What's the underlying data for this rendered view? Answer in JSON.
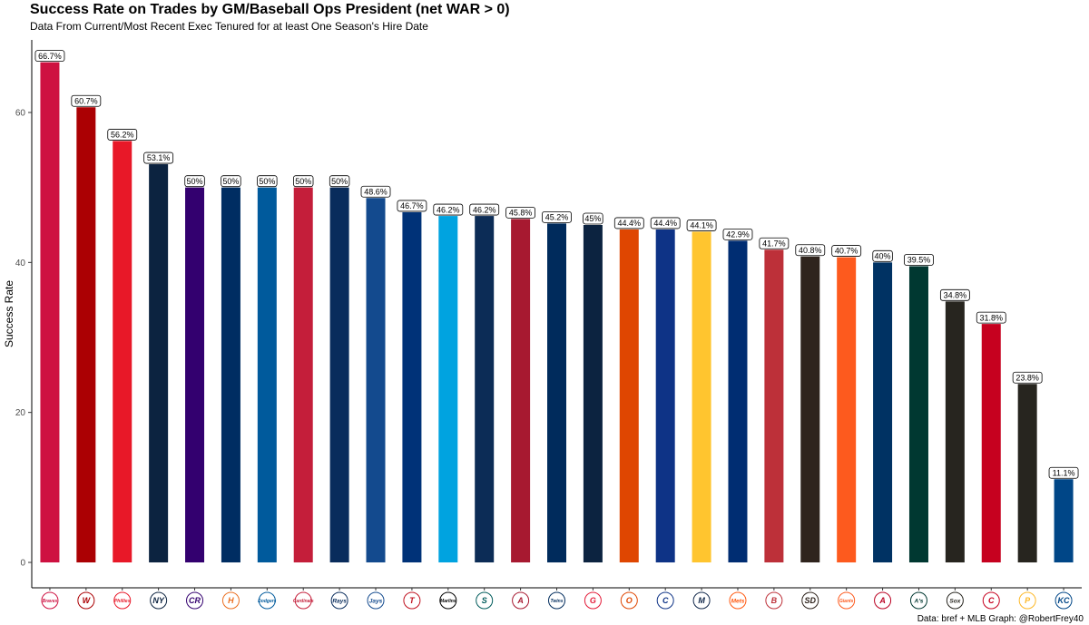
{
  "chart_data": {
    "type": "bar",
    "title": "Success Rate on Trades by GM/Baseball Ops President (net WAR > 0)",
    "subtitle": "Data From Current/Most Recent Exec Tenured for at least One Season's Hire Date",
    "ylabel": "Success Rate",
    "xlabel": "",
    "caption": "Data: bref + MLB Graph: @RobertFrey40",
    "ylim": [
      0,
      70
    ],
    "yticks": [
      0,
      20,
      40,
      60
    ],
    "grid": false,
    "categories": [
      "Braves",
      "Nationals",
      "Phillies",
      "Yankees",
      "Rockies",
      "Astros",
      "Dodgers",
      "Cardinals",
      "Rays",
      "Blue Jays",
      "Rangers",
      "Marlins",
      "Mariners",
      "Diamondbacks",
      "Twins",
      "Guardians",
      "Orioles",
      "Cubs",
      "Brewers",
      "Mets",
      "Red Sox",
      "Padres",
      "Giants",
      "Angels",
      "Athletics",
      "White Sox",
      "Reds",
      "Pirates",
      "Royals"
    ],
    "values": [
      66.7,
      60.7,
      56.2,
      53.1,
      50,
      50,
      50,
      50,
      50,
      48.6,
      46.7,
      46.2,
      46.2,
      45.8,
      45.2,
      45,
      44.4,
      44.4,
      44.1,
      42.9,
      41.7,
      40.8,
      40.7,
      40,
      39.5,
      34.8,
      31.8,
      23.8,
      11.1
    ],
    "value_labels": [
      "66.7%",
      "60.7%",
      "56.2%",
      "53.1%",
      "50%",
      "50%",
      "50%",
      "50%",
      "50%",
      "48.6%",
      "46.7%",
      "46.2%",
      "46.2%",
      "45.8%",
      "45.2%",
      "45%",
      "44.4%",
      "44.4%",
      "44.1%",
      "42.9%",
      "41.7%",
      "40.8%",
      "40.7%",
      "40%",
      "39.5%",
      "34.8%",
      "31.8%",
      "23.8%",
      "11.1%"
    ],
    "colors": [
      "#CE1141",
      "#AB0003",
      "#E81828",
      "#0C2340",
      "#33006F",
      "#002D62",
      "#005A9C",
      "#C41E3A",
      "#092C5C",
      "#134A8E",
      "#003278",
      "#00A3E0",
      "#0C2C56",
      "#A71930",
      "#002B5C",
      "#0C2340",
      "#DF4601",
      "#0E3386",
      "#FFC52F",
      "#002D72",
      "#BD3039",
      "#2F241D",
      "#FD5A1E",
      "#003263",
      "#003831",
      "#27251F",
      "#C6011F",
      "#27251F",
      "#004687"
    ],
    "logos": [
      {
        "icon": "braves-logo-icon",
        "text": "Braves",
        "color": "#CE1141"
      },
      {
        "icon": "nationals-logo-icon",
        "text": "W",
        "color": "#AB0003"
      },
      {
        "icon": "phillies-logo-icon",
        "text": "Phillies",
        "color": "#E81828"
      },
      {
        "icon": "yankees-logo-icon",
        "text": "NY",
        "color": "#0C2340"
      },
      {
        "icon": "rockies-logo-icon",
        "text": "CR",
        "color": "#33006F"
      },
      {
        "icon": "astros-logo-icon",
        "text": "H",
        "color": "#EB6E1F"
      },
      {
        "icon": "dodgers-logo-icon",
        "text": "Dodgers",
        "color": "#005A9C"
      },
      {
        "icon": "cardinals-logo-icon",
        "text": "Cardinals",
        "color": "#C41E3A"
      },
      {
        "icon": "rays-logo-icon",
        "text": "Rays",
        "color": "#092C5C"
      },
      {
        "icon": "bluejays-logo-icon",
        "text": "Jays",
        "color": "#134A8E"
      },
      {
        "icon": "rangers-logo-icon",
        "text": "T",
        "color": "#C0111F"
      },
      {
        "icon": "marlins-logo-icon",
        "text": "Marlins",
        "color": "#000000"
      },
      {
        "icon": "mariners-logo-icon",
        "text": "S",
        "color": "#005C5C"
      },
      {
        "icon": "diamondbacks-logo-icon",
        "text": "A",
        "color": "#A71930"
      },
      {
        "icon": "twins-logo-icon",
        "text": "Twins",
        "color": "#002B5C"
      },
      {
        "icon": "guardians-logo-icon",
        "text": "G",
        "color": "#E31937"
      },
      {
        "icon": "orioles-logo-icon",
        "text": "O",
        "color": "#DF4601"
      },
      {
        "icon": "cubs-logo-icon",
        "text": "C",
        "color": "#0E3386"
      },
      {
        "icon": "brewers-logo-icon",
        "text": "M",
        "color": "#12284B"
      },
      {
        "icon": "mets-logo-icon",
        "text": "Mets",
        "color": "#FF5910"
      },
      {
        "icon": "redsox-logo-icon",
        "text": "B",
        "color": "#BD3039"
      },
      {
        "icon": "padres-logo-icon",
        "text": "SD",
        "color": "#2F241D"
      },
      {
        "icon": "giants-logo-icon",
        "text": "Giants",
        "color": "#FD5A1E"
      },
      {
        "icon": "angels-logo-icon",
        "text": "A",
        "color": "#BA0021"
      },
      {
        "icon": "athletics-logo-icon",
        "text": "A's",
        "color": "#003831"
      },
      {
        "icon": "whitesox-logo-icon",
        "text": "Sox",
        "color": "#27251F"
      },
      {
        "icon": "reds-logo-icon",
        "text": "C",
        "color": "#C6011F"
      },
      {
        "icon": "pirates-logo-icon",
        "text": "P",
        "color": "#FDB827"
      },
      {
        "icon": "royals-logo-icon",
        "text": "KC",
        "color": "#004687"
      }
    ]
  }
}
